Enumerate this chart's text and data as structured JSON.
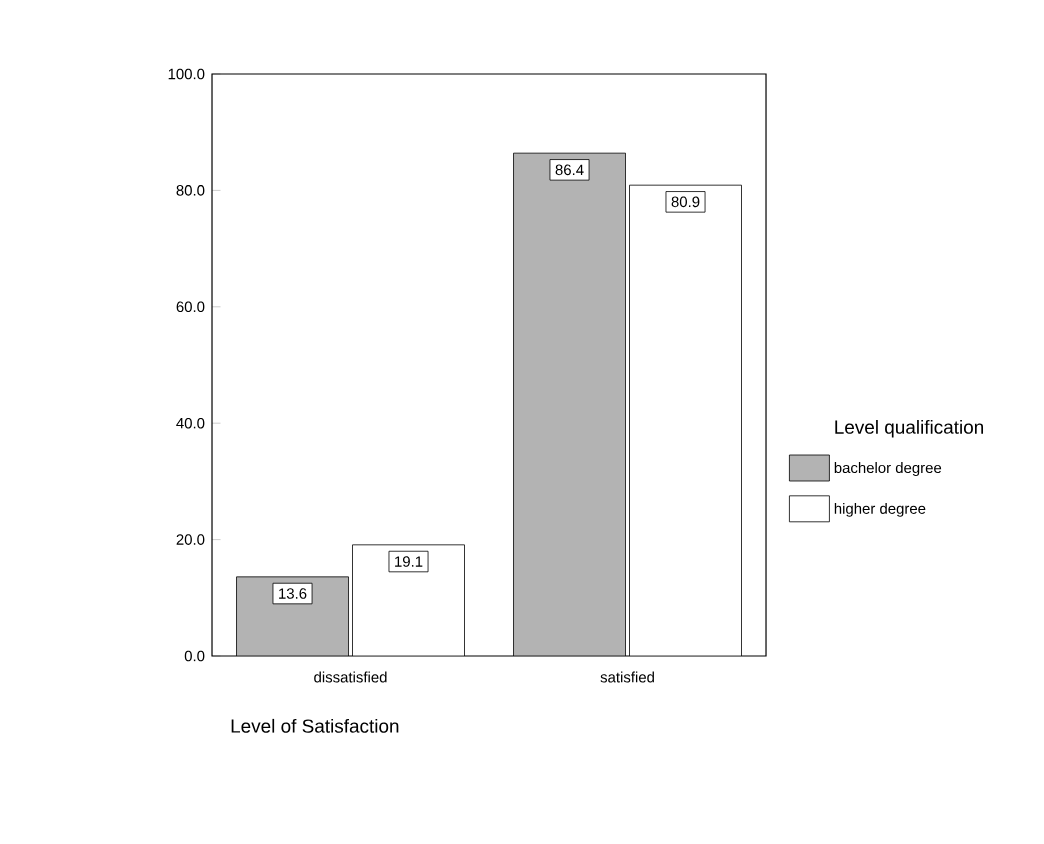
{
  "chart_data": {
    "type": "bar",
    "categories": [
      "dissatisfied",
      "satisfied"
    ],
    "series": [
      {
        "name": "bachelor degree",
        "color": "#b3b3b3",
        "values": [
          13.6,
          86.4
        ]
      },
      {
        "name": "higher degree",
        "color": "#ffffff",
        "values": [
          19.1,
          80.9
        ]
      }
    ],
    "xlabel": "Level of Satisfaction",
    "legend_title": "Level qualification",
    "ylim": [
      0,
      100
    ],
    "yticks": [
      {
        "value": 0,
        "label": "0.0"
      },
      {
        "value": 20,
        "label": "20.0"
      },
      {
        "value": 40,
        "label": "40.0"
      },
      {
        "value": 60,
        "label": "60.0"
      },
      {
        "value": 80,
        "label": "80.0"
      },
      {
        "value": 100,
        "label": "100.0"
      }
    ],
    "data_labels": true,
    "legend": "right"
  }
}
